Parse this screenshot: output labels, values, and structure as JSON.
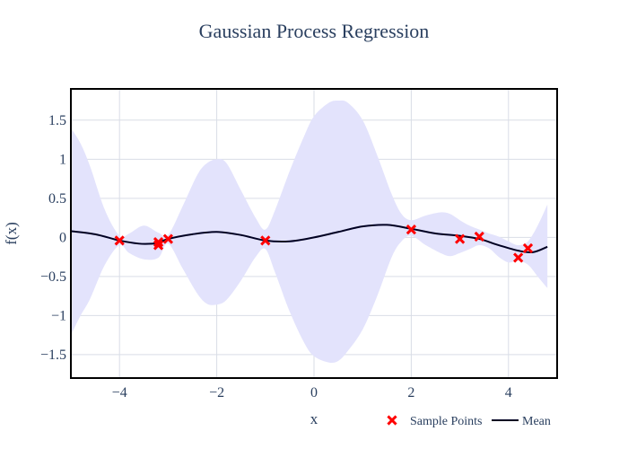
{
  "chart_data": {
    "type": "line",
    "title": "Gaussian Process Regression",
    "xlabel": "x",
    "ylabel": "f(x)",
    "xlim": [
      -5,
      5
    ],
    "ylim": [
      -1.8,
      1.9
    ],
    "xticks": [
      -4,
      -2,
      0,
      2,
      4
    ],
    "xtick_labels": [
      "−4",
      "−2",
      "0",
      "2",
      "4"
    ],
    "yticks": [
      1.5,
      1,
      0.5,
      0,
      -0.5,
      -1,
      -1.5
    ],
    "ytick_labels": [
      "1.5",
      "1",
      "0.5",
      "0",
      "−0.5",
      "−1",
      "−1.5"
    ],
    "grid": true,
    "legend_position": "bottom-right",
    "legend": [
      "Sample Points",
      "Mean"
    ],
    "colors": {
      "band": "#e3e3fc",
      "mean": "#000022",
      "points": "#ff0000",
      "grid": "#d9dde6",
      "frame": "#000000",
      "text": "#2a3f5f"
    },
    "series": [
      {
        "name": "Mean",
        "kind": "line",
        "x": [
          -5.0,
          -4.5,
          -4.0,
          -3.6,
          -3.3,
          -3.2,
          -3.0,
          -2.5,
          -2.0,
          -1.5,
          -1.0,
          -0.5,
          0.0,
          0.5,
          1.0,
          1.5,
          2.0,
          2.5,
          3.0,
          3.4,
          3.8,
          4.2,
          4.5,
          4.8
        ],
        "y": [
          0.08,
          0.04,
          -0.04,
          -0.08,
          -0.08,
          -0.07,
          -0.02,
          0.04,
          0.07,
          0.03,
          -0.04,
          -0.05,
          0.0,
          0.07,
          0.14,
          0.16,
          0.11,
          0.05,
          0.02,
          -0.02,
          -0.1,
          -0.17,
          -0.19,
          -0.12
        ]
      },
      {
        "name": "Sample Points",
        "kind": "scatter",
        "x": [
          -4.0,
          -3.2,
          -3.2,
          -3.0,
          -1.0,
          2.0,
          3.0,
          3.4,
          4.2,
          4.4
        ],
        "y": [
          -0.04,
          -0.06,
          -0.1,
          -0.02,
          -0.04,
          0.1,
          -0.02,
          0.01,
          -0.26,
          -0.14
        ]
      },
      {
        "name": "Confidence band",
        "kind": "band",
        "x": [
          -5.0,
          -4.8,
          -4.6,
          -4.3,
          -4.0,
          -3.8,
          -3.5,
          -3.2,
          -3.0,
          -2.7,
          -2.4,
          -2.2,
          -2.0,
          -1.8,
          -1.5,
          -1.2,
          -1.0,
          -0.8,
          -0.5,
          -0.2,
          0.0,
          0.3,
          0.5,
          0.7,
          1.0,
          1.3,
          1.6,
          1.8,
          2.0,
          2.3,
          2.6,
          2.8,
          3.0,
          3.2,
          3.4,
          3.6,
          3.8,
          4.0,
          4.2,
          4.4,
          4.6,
          4.8
        ],
        "upper": [
          1.4,
          1.2,
          0.9,
          0.35,
          0.02,
          0.05,
          0.15,
          0.06,
          0.03,
          0.4,
          0.8,
          0.95,
          1.0,
          0.95,
          0.6,
          0.25,
          0.1,
          0.35,
          0.85,
          1.3,
          1.55,
          1.72,
          1.75,
          1.72,
          1.5,
          1.05,
          0.55,
          0.3,
          0.22,
          0.28,
          0.32,
          0.3,
          0.22,
          0.15,
          0.1,
          0.05,
          0.01,
          -0.05,
          -0.1,
          -0.05,
          0.15,
          0.42
        ],
        "lower": [
          -1.25,
          -1.0,
          -0.78,
          -0.35,
          -0.1,
          -0.2,
          -0.28,
          -0.26,
          -0.08,
          -0.4,
          -0.72,
          -0.85,
          -0.86,
          -0.8,
          -0.55,
          -0.25,
          -0.15,
          -0.45,
          -0.95,
          -1.35,
          -1.52,
          -1.6,
          -1.58,
          -1.45,
          -1.18,
          -0.75,
          -0.25,
          -0.05,
          0.02,
          -0.1,
          -0.2,
          -0.24,
          -0.2,
          -0.15,
          -0.1,
          -0.14,
          -0.25,
          -0.32,
          -0.3,
          -0.35,
          -0.5,
          -0.65
        ]
      }
    ]
  }
}
